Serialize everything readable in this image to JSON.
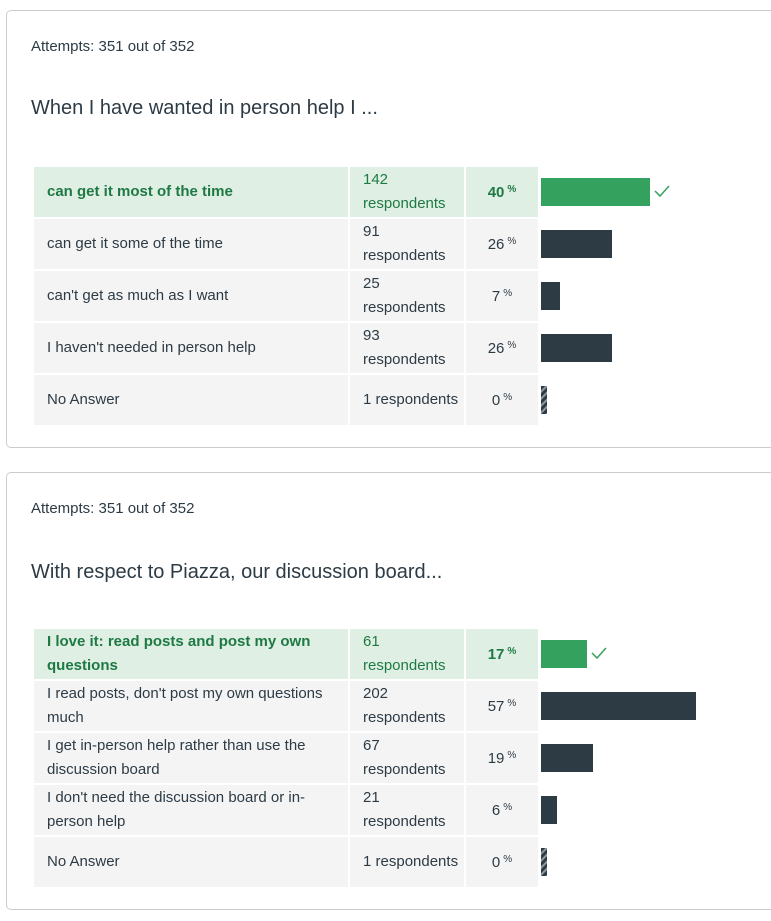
{
  "questions": [
    {
      "attempts": "Attempts: 351 out of 352",
      "question": "When I have wanted in person help I ...",
      "answers": [
        {
          "label": "can get it most of the time",
          "respondents": "142 respondents",
          "percent": "40",
          "value": 40,
          "correct": true
        },
        {
          "label": "can get it some of the time",
          "respondents": "91 respondents",
          "percent": "26",
          "value": 26,
          "correct": false
        },
        {
          "label": "can't get as much as I want",
          "respondents": "25 respondents",
          "percent": "7",
          "value": 7,
          "correct": false
        },
        {
          "label": "I haven't needed in person help",
          "respondents": "93 respondents",
          "percent": "26",
          "value": 26,
          "correct": false
        },
        {
          "label": "No Answer",
          "respondents": "1 respondents",
          "percent": "0",
          "value": 0,
          "correct": false
        }
      ]
    },
    {
      "attempts": "Attempts: 351 out of 352",
      "question": "With respect to Piazza, our discussion board...",
      "answers": [
        {
          "label": "I love it: read posts and post my own questions",
          "respondents": "61 respondents",
          "percent": "17",
          "value": 17,
          "correct": true
        },
        {
          "label": "I read posts, don't post my own questions much",
          "respondents": "202 respondents",
          "percent": "57",
          "value": 57,
          "correct": false
        },
        {
          "label": "I get in-person help rather than use the discussion board",
          "respondents": "67 respondents",
          "percent": "19",
          "value": 19,
          "correct": false
        },
        {
          "label": "I don't need the discussion board or in-person help",
          "respondents": "21 respondents",
          "percent": "6",
          "value": 6,
          "correct": false
        },
        {
          "label": "No Answer",
          "respondents": "1 respondents",
          "percent": "0",
          "value": 0,
          "correct": false
        }
      ]
    }
  ],
  "percent_symbol": "%",
  "colors": {
    "correct": "#35a15f",
    "bar": "#2d3b45",
    "correct_bg": "#e0efe3",
    "cell_bg": "#f4f4f4"
  }
}
